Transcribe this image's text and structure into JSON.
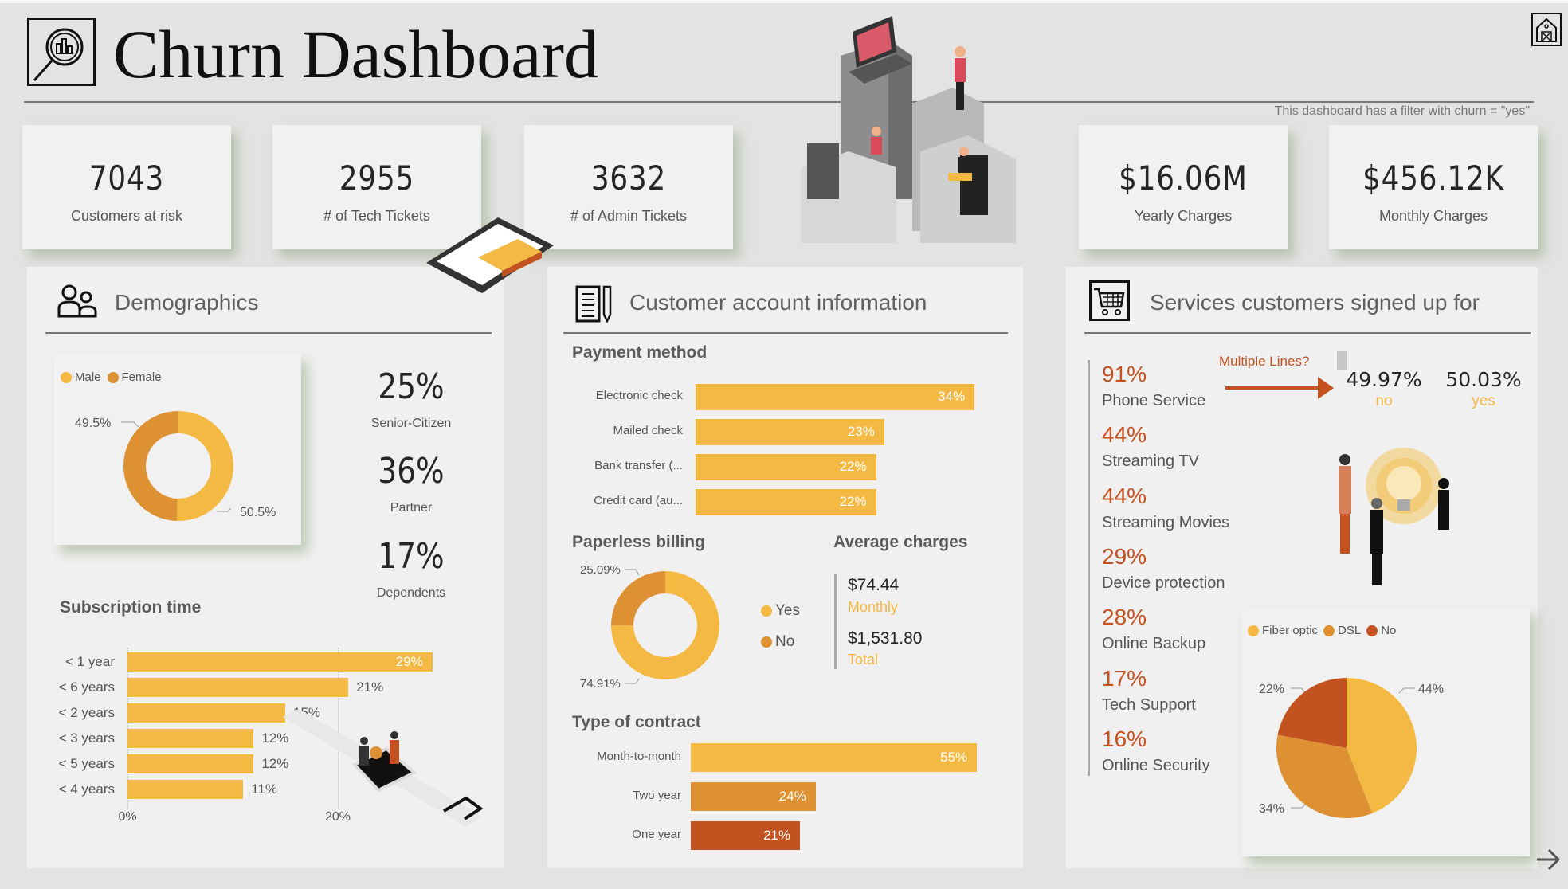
{
  "header": {
    "title": "Churn Dashboard",
    "filter_note": "This dashboard has a filter with churn = \"yes\""
  },
  "kpis": [
    {
      "value": "7043",
      "label": "Customers at risk"
    },
    {
      "value": "2955",
      "label": "# of Tech Tickets"
    },
    {
      "value": "3632",
      "label": "# of Admin Tickets"
    },
    {
      "value": "$16.06M",
      "label": "Yearly Charges"
    },
    {
      "value": "$456.12K",
      "label": "Monthly Charges"
    }
  ],
  "colors": {
    "yellow": "#f4b942",
    "orange": "#de9132",
    "rust": "#c25320",
    "accent_text": "#c4511f"
  },
  "demographics": {
    "title": "Demographics",
    "stats": [
      {
        "value": "25%",
        "label": "Senior-Citizen"
      },
      {
        "value": "36%",
        "label": "Partner"
      },
      {
        "value": "17%",
        "label": "Dependents"
      }
    ],
    "subscription_title": "Subscription time"
  },
  "account": {
    "title": "Customer account information",
    "payment_title": "Payment method",
    "paperless_title": "Paperless billing",
    "avg_title": "Average charges",
    "avg_monthly": "$74.44",
    "avg_monthly_label": "Monthly",
    "avg_total": "$1,531.80",
    "avg_total_label": "Total",
    "contract_title": "Type of contract"
  },
  "services": {
    "title": "Services customers signed up for",
    "items": [
      {
        "pct": "91%",
        "label": "Phone Service"
      },
      {
        "pct": "44%",
        "label": "Streaming TV"
      },
      {
        "pct": "44%",
        "label": "Streaming Movies"
      },
      {
        "pct": "29%",
        "label": "Device protection"
      },
      {
        "pct": "28%",
        "label": "Online Backup"
      },
      {
        "pct": "17%",
        "label": "Tech Support"
      },
      {
        "pct": "16%",
        "label": "Online Security"
      }
    ],
    "multiple_lines_label": "Multiple Lines?",
    "multiple_lines": [
      {
        "value": "49.97%",
        "label": "no"
      },
      {
        "value": "50.03%",
        "label": "yes"
      }
    ]
  },
  "chart_data": [
    {
      "type": "pie",
      "variant": "donut",
      "legend": "top-left",
      "categories": [
        "Male",
        "Female"
      ],
      "values": [
        50.5,
        49.5
      ],
      "labels": [
        "50.5%",
        "49.5%"
      ],
      "colors": [
        "#f4b942",
        "#de9132"
      ]
    },
    {
      "type": "bar",
      "orientation": "horizontal",
      "title": "Subscription time",
      "categories": [
        "< 1 year",
        "< 6 years",
        "< 2 years",
        "< 3 years",
        "< 5 years",
        "< 4 years"
      ],
      "values": [
        29,
        21,
        15,
        12,
        12,
        11
      ],
      "labels": [
        "29%",
        "21%",
        "15%",
        "12%",
        "12%",
        "11%"
      ],
      "xticks": [
        "0%",
        "20%"
      ],
      "grid": true,
      "color": "#f4b942"
    },
    {
      "type": "bar",
      "orientation": "horizontal",
      "title": "Payment method",
      "categories": [
        "Electronic check",
        "Mailed check",
        "Bank transfer (...",
        "Credit card (au..."
      ],
      "values": [
        34,
        23,
        22,
        22
      ],
      "labels": [
        "34%",
        "23%",
        "22%",
        "22%"
      ],
      "color": "#f4b942"
    },
    {
      "type": "pie",
      "variant": "donut",
      "title": "Paperless billing",
      "legend": "right",
      "categories": [
        "Yes",
        "No"
      ],
      "values": [
        74.91,
        25.09
      ],
      "labels": [
        "74.91%",
        "25.09%"
      ],
      "colors": [
        "#f4b942",
        "#de9132"
      ]
    },
    {
      "type": "bar",
      "orientation": "horizontal",
      "title": "Type of contract",
      "categories": [
        "Month-to-month",
        "Two year",
        "One year"
      ],
      "values": [
        55,
        24,
        21
      ],
      "labels": [
        "55%",
        "24%",
        "21%"
      ],
      "colors": [
        "#f4b942",
        "#de9132",
        "#c25320"
      ]
    },
    {
      "type": "pie",
      "legend": "top-left",
      "categories": [
        "Fiber optic",
        "DSL",
        "No"
      ],
      "values": [
        44,
        34,
        22
      ],
      "labels": [
        "44%",
        "34%",
        "22%"
      ],
      "colors": [
        "#f4b942",
        "#de9132",
        "#c25320"
      ]
    }
  ]
}
